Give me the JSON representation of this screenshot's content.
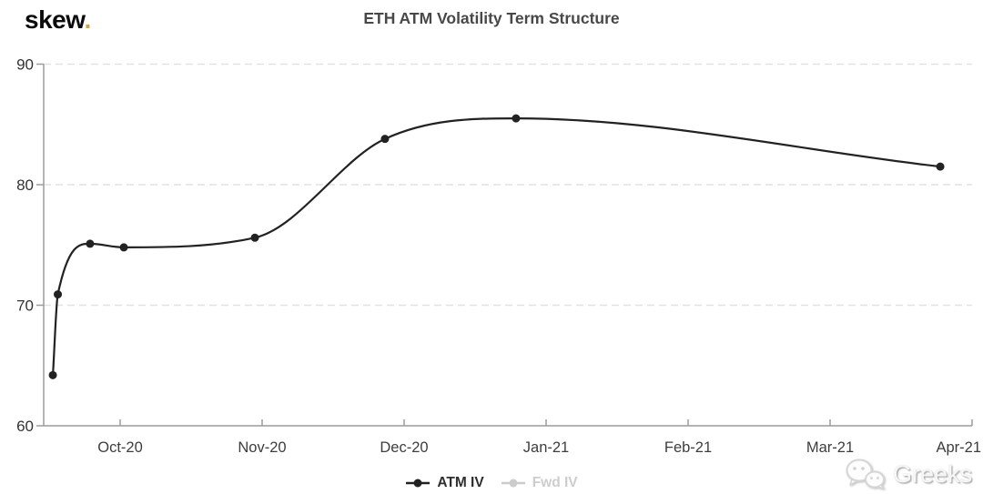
{
  "brand": {
    "logo_text": "skew",
    "logo_dot": ".",
    "logo_dot_color": "#d2a43c"
  },
  "header": {
    "title": "ETH ATM Volatility Term Structure"
  },
  "chart_data": {
    "type": "line",
    "title": "ETH ATM Volatility Term Structure",
    "xlabel": "",
    "ylabel": "",
    "ylim": [
      60,
      90
    ],
    "y_ticks": [
      60,
      70,
      80,
      90
    ],
    "y_tick_labels": [
      "60",
      "70",
      "80",
      "90"
    ],
    "x_tick_labels": [
      "Oct-20",
      "Nov-20",
      "Dec-20",
      "Jan-21",
      "Feb-21",
      "Mar-21",
      "Apr-21"
    ],
    "x_unit": "months relative to the Oct-20 tick (expiry dates)",
    "xlim": [
      -0.54,
      6.0
    ],
    "grid": "horizontal dashed gridlines",
    "legend_position": "bottom-center",
    "series": [
      {
        "name": "ATM IV",
        "color": "#222222",
        "enabled": true,
        "marker": "circle",
        "points": [
          {
            "x": -0.474,
            "y": 64.2
          },
          {
            "x": -0.439,
            "y": 70.9
          },
          {
            "x": -0.212,
            "y": 75.1
          },
          {
            "x": 0.026,
            "y": 74.8
          },
          {
            "x": 0.949,
            "y": 75.6
          },
          {
            "x": 1.865,
            "y": 83.8
          },
          {
            "x": 2.788,
            "y": 85.5
          },
          {
            "x": 5.776,
            "y": 81.5
          }
        ]
      },
      {
        "name": "Fwd IV",
        "color": "#cccccc",
        "enabled": false,
        "marker": "circle",
        "points": []
      }
    ]
  },
  "watermark": {
    "icon": "wechat-icon",
    "text": "Greeks"
  },
  "colors": {
    "background": "#ffffff",
    "axis": "#9c9c9c",
    "gridline": "#e2e2e2",
    "title_text": "#484848",
    "tick_label_text": "#3d3d3d",
    "legend_enabled_text": "#2e2e2e",
    "legend_disabled_text": "#cdcdcd",
    "watermark_text": "#f7f7f7"
  }
}
